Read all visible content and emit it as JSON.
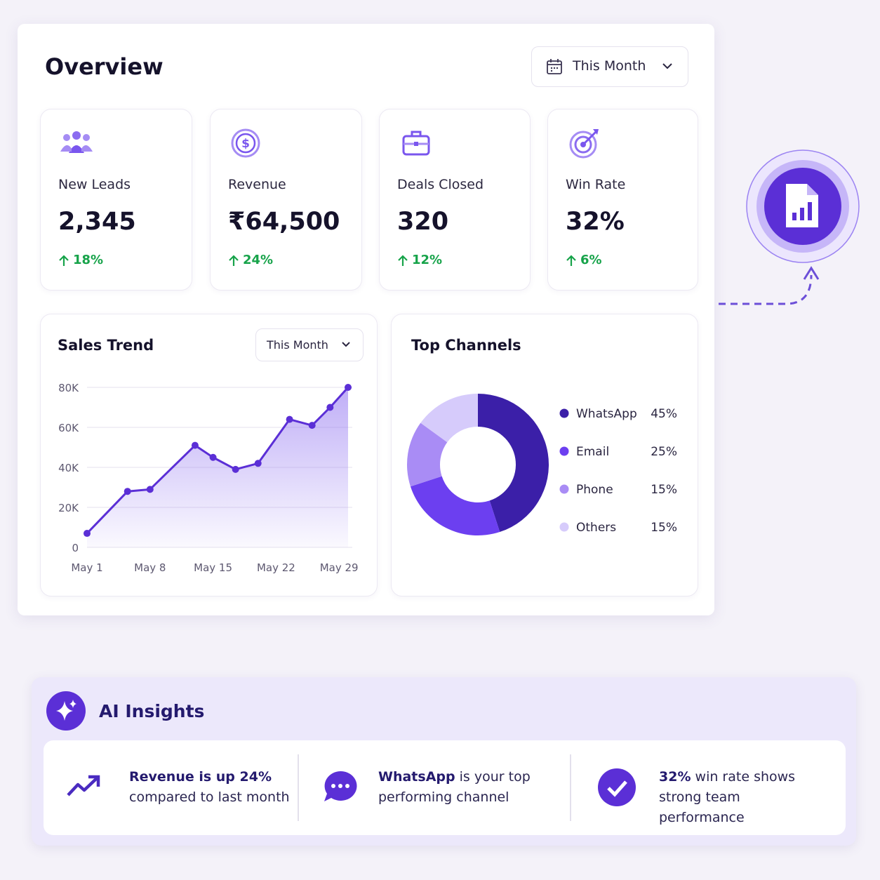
{
  "overview": {
    "title": "Overview",
    "range": "This Month"
  },
  "kpis": [
    {
      "label": "New Leads",
      "value": "2,345",
      "change": "18%"
    },
    {
      "label": "Revenue",
      "value": "₹64,500",
      "change": "24%"
    },
    {
      "label": "Deals Closed",
      "value": "320",
      "change": "12%"
    },
    {
      "label": "Win Rate",
      "value": "32%",
      "change": "6%"
    }
  ],
  "chart_data": [
    {
      "type": "line",
      "title": "Sales Trend",
      "range": "This Month",
      "x": [
        1,
        5.5,
        8,
        13,
        15,
        17.5,
        20,
        23.5,
        26,
        28,
        30
      ],
      "values": [
        7000,
        28000,
        29000,
        51000,
        45000,
        39000,
        42000,
        64000,
        61000,
        70000,
        80000
      ],
      "color": "#5b2fd6",
      "xlim": [
        1,
        30
      ],
      "xticks": [
        {
          "value": 1,
          "label": "May 1"
        },
        {
          "value": 8,
          "label": "May 8"
        },
        {
          "value": 15,
          "label": "May 15"
        },
        {
          "value": 22,
          "label": "May 22"
        },
        {
          "value": 29,
          "label": "May 29"
        }
      ],
      "ylim": [
        0,
        80000
      ],
      "yticks": [
        0,
        {
          "value": 20000,
          "label": "20K"
        },
        {
          "value": 40000,
          "label": "40K"
        },
        {
          "value": 60000,
          "label": "60K"
        },
        {
          "value": 80000,
          "label": "80K"
        }
      ],
      "grid": true
    },
    {
      "type": "pie",
      "title": "Top Channels",
      "categories": [
        "WhatsApp",
        "Email",
        "Phone",
        "Others"
      ],
      "values": [
        45,
        25,
        15,
        15
      ],
      "value_labels": [
        "45%",
        "25%",
        "15%",
        "15%"
      ],
      "colors": [
        "#3b1fa8",
        "#6c3ff0",
        "#a98cf5",
        "#d6cbfb"
      ]
    }
  ],
  "insights": {
    "title": "AI Insights",
    "items": [
      {
        "bold": "Revenue is up 24%",
        "text": "compared to last month"
      },
      {
        "bold": "WhatsApp",
        "text": "is your top performing channel"
      },
      {
        "bold": "32%",
        "text": "win rate shows strong team performance"
      }
    ]
  }
}
